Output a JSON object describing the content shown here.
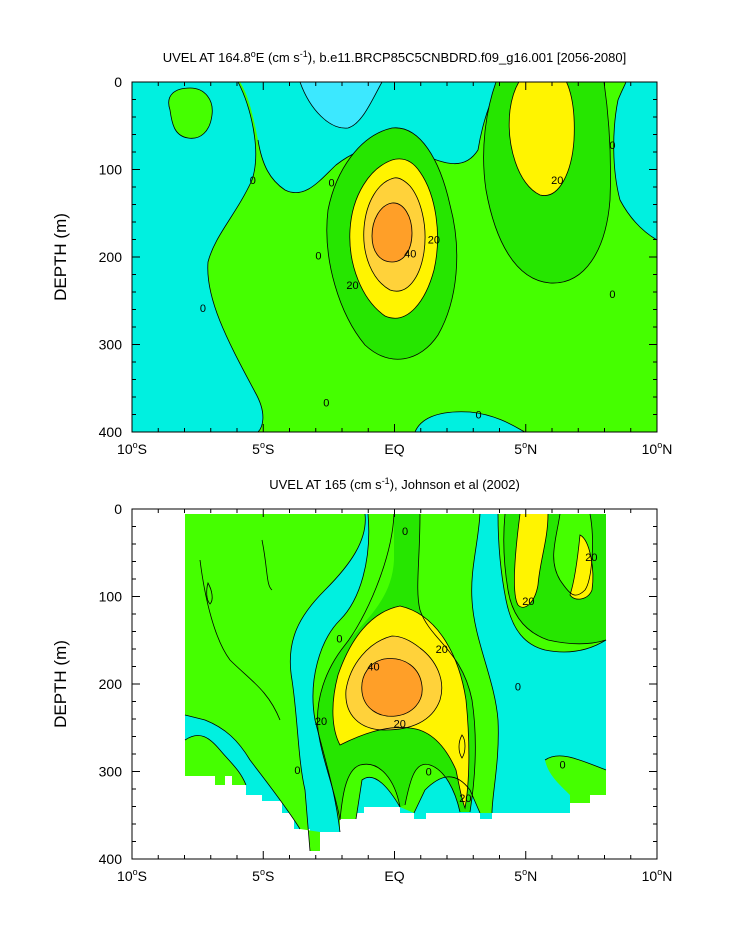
{
  "chart_data": [
    {
      "type": "contour",
      "title_main": "UVEL AT 164.8",
      "title_deg": "o",
      "title_after_deg": "E (cm s",
      "title_exp": "-1",
      "title_rest": "), b.e11.BRCP85C5CNBDRD.f09_g16.001 [2056-2080]",
      "ylabel": "DEPTH (m)",
      "xlabel": "",
      "xlim": [
        -10,
        10
      ],
      "ylim": [
        400,
        0
      ],
      "x_ticks": [
        {
          "value": -10,
          "num": "10",
          "deg": "o",
          "hemi": "S"
        },
        {
          "value": -5,
          "num": "5",
          "deg": "o",
          "hemi": "S"
        },
        {
          "value": 0,
          "num": "EQ",
          "deg": "",
          "hemi": ""
        },
        {
          "value": 5,
          "num": "5",
          "deg": "o",
          "hemi": "N"
        },
        {
          "value": 10,
          "num": "10",
          "deg": "o",
          "hemi": "N"
        }
      ],
      "y_ticks": [
        "0",
        "100",
        "200",
        "300",
        "400"
      ],
      "y_tick_values": [
        0,
        100,
        200,
        300,
        400
      ],
      "contour_interval": 10,
      "fill_levels": [
        {
          "range": "< -10",
          "color": "#3ce8ff"
        },
        {
          "range": "-10 to 0",
          "color": "#00f0e0"
        },
        {
          "range": "0 to 10",
          "color": "#45ff00"
        },
        {
          "range": "10 to 20",
          "color": "#26e600"
        },
        {
          "range": "20 to 30",
          "color": "#fff400"
        },
        {
          "range": "30 to 40",
          "color": "#ffd23a"
        },
        {
          "range": "> 40",
          "color": "#ff9f28"
        }
      ],
      "contour_labels": [
        {
          "text": "0",
          "x": -2.4,
          "y": 115
        },
        {
          "text": "0",
          "x": 8.3,
          "y": 72
        },
        {
          "text": "0",
          "x": -5.4,
          "y": 112
        },
        {
          "text": "0",
          "x": -2.9,
          "y": 198
        },
        {
          "text": "0",
          "x": 8.3,
          "y": 242
        },
        {
          "text": "0",
          "x": -7.3,
          "y": 258
        },
        {
          "text": "0",
          "x": -2.6,
          "y": 366
        },
        {
          "text": "0",
          "x": 3.2,
          "y": 380
        },
        {
          "text": "20",
          "x": 1.5,
          "y": 180
        },
        {
          "text": "20",
          "x": -1.6,
          "y": 232
        },
        {
          "text": "20",
          "x": 6.2,
          "y": 112
        },
        {
          "text": "40",
          "x": 0.6,
          "y": 196
        }
      ]
    },
    {
      "type": "contour",
      "title_main": "UVEL AT 165 (cm s",
      "title_exp": "-1",
      "title_rest": "), Johnson et al (2002)",
      "ylabel": "DEPTH (m)",
      "xlabel": "",
      "xlim": [
        -10,
        10
      ],
      "ylim": [
        400,
        0
      ],
      "x_ticks": [
        {
          "value": -10,
          "num": "10",
          "deg": "o",
          "hemi": "S"
        },
        {
          "value": -5,
          "num": "5",
          "deg": "o",
          "hemi": "S"
        },
        {
          "value": 0,
          "num": "EQ",
          "deg": "",
          "hemi": ""
        },
        {
          "value": 5,
          "num": "5",
          "deg": "o",
          "hemi": "N"
        },
        {
          "value": 10,
          "num": "10",
          "deg": "o",
          "hemi": "N"
        }
      ],
      "y_ticks": [
        "0",
        "100",
        "200",
        "300",
        "400"
      ],
      "y_tick_values": [
        0,
        100,
        200,
        300,
        400
      ],
      "contour_interval": 10,
      "data_extent": {
        "x": [
          -8,
          8
        ],
        "y": [
          5,
          365
        ]
      },
      "contour_labels": [
        {
          "text": "0",
          "x": 0.4,
          "y": 25
        },
        {
          "text": "0",
          "x": -2.1,
          "y": 148
        },
        {
          "text": "0",
          "x": -3.7,
          "y": 298
        },
        {
          "text": "0",
          "x": 1.3,
          "y": 300
        },
        {
          "text": "0",
          "x": 4.7,
          "y": 203
        },
        {
          "text": "0",
          "x": 6.4,
          "y": 292
        },
        {
          "text": "20",
          "x": 1.8,
          "y": 160
        },
        {
          "text": "20",
          "x": -2.8,
          "y": 242
        },
        {
          "text": "20",
          "x": 0.2,
          "y": 245
        },
        {
          "text": "20",
          "x": 2.7,
          "y": 330
        },
        {
          "text": "20",
          "x": 5.1,
          "y": 105
        },
        {
          "text": "20",
          "x": 7.5,
          "y": 55
        },
        {
          "text": "40",
          "x": -0.8,
          "y": 180
        }
      ]
    }
  ]
}
